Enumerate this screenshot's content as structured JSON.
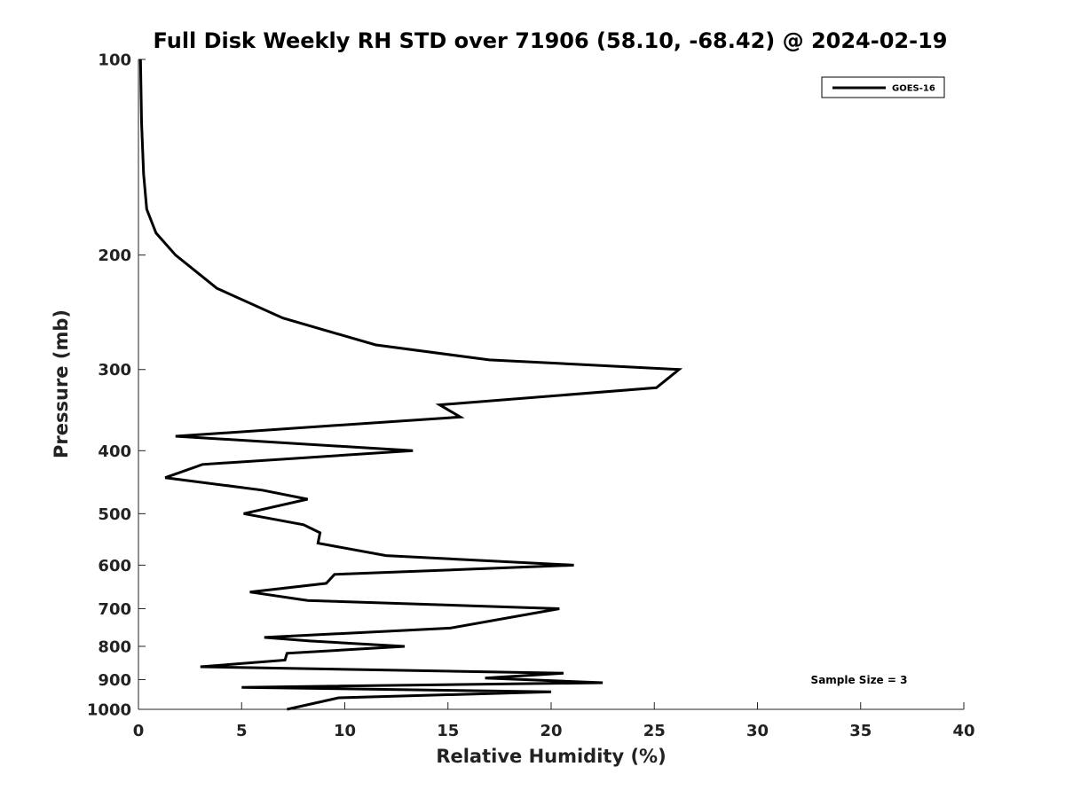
{
  "chart_data": {
    "type": "line",
    "title": "Full Disk Weekly RH STD over 71906 (58.10, -68.42) @ 2024-02-19",
    "xlabel": "Relative Humidity (%)",
    "ylabel": "Pressure (mb)",
    "xlim": [
      0,
      40
    ],
    "ylim": [
      1000,
      100
    ],
    "y_scale": "log",
    "x_ticks": [
      0,
      5,
      10,
      15,
      20,
      25,
      30,
      35,
      40
    ],
    "y_ticks": [
      100,
      200,
      300,
      400,
      500,
      600,
      700,
      800,
      900,
      1000
    ],
    "legend": {
      "location": "top-right",
      "entries": [
        "GOES-16"
      ]
    },
    "annotation": "Sample Size = 3",
    "series": [
      {
        "name": "GOES-16",
        "color": "#000000",
        "points": [
          [
            0.1,
            100
          ],
          [
            0.15,
            125
          ],
          [
            0.25,
            150
          ],
          [
            0.4,
            170
          ],
          [
            0.85,
            185
          ],
          [
            1.8,
            200
          ],
          [
            3.8,
            225
          ],
          [
            7.0,
            250
          ],
          [
            11.5,
            275
          ],
          [
            17.0,
            290
          ],
          [
            26.2,
            300
          ],
          [
            25.1,
            320
          ],
          [
            14.6,
            340
          ],
          [
            15.6,
            355
          ],
          [
            1.8,
            380
          ],
          [
            13.3,
            400
          ],
          [
            3.1,
            420
          ],
          [
            1.3,
            440
          ],
          [
            6.0,
            460
          ],
          [
            8.2,
            475
          ],
          [
            5.1,
            500
          ],
          [
            8.0,
            520
          ],
          [
            8.8,
            535
          ],
          [
            8.7,
            555
          ],
          [
            12.0,
            580
          ],
          [
            21.1,
            600
          ],
          [
            9.5,
            620
          ],
          [
            9.1,
            640
          ],
          [
            5.4,
            660
          ],
          [
            8.2,
            680
          ],
          [
            20.4,
            700
          ],
          [
            15.1,
            750
          ],
          [
            6.1,
            775
          ],
          [
            8.3,
            785
          ],
          [
            12.9,
            800
          ],
          [
            7.2,
            820
          ],
          [
            7.1,
            840
          ],
          [
            3.0,
            860
          ],
          [
            20.6,
            880
          ],
          [
            16.8,
            895
          ],
          [
            22.5,
            910
          ],
          [
            5.0,
            925
          ],
          [
            20.0,
            940
          ],
          [
            9.7,
            960
          ],
          [
            7.2,
            1000
          ]
        ]
      }
    ]
  }
}
